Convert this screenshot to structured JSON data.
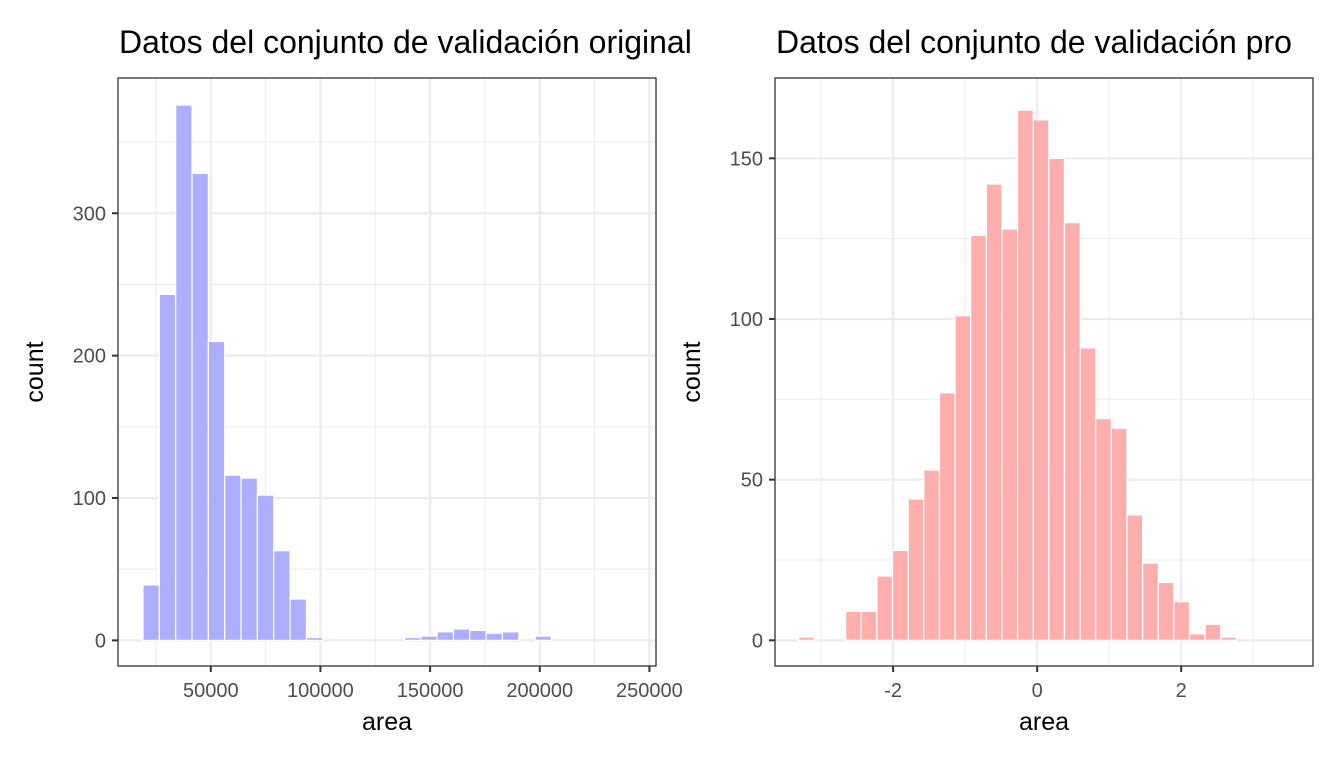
{
  "chart_data": [
    {
      "type": "bar",
      "subtype": "histogram",
      "title": "Datos del conjunto de validación original",
      "xlabel": "area",
      "ylabel": "count",
      "fill_color": "#aaaaff",
      "x_ticks": [
        50000,
        100000,
        150000,
        200000,
        250000
      ],
      "x_tick_labels": [
        "50000",
        "100000",
        "150000",
        "200000",
        "250000"
      ],
      "y_ticks": [
        0,
        100,
        200,
        300
      ],
      "y_tick_labels": [
        "0",
        "100",
        "200",
        "300"
      ],
      "xlim": [
        7700,
        253000
      ],
      "ylim": [
        -18,
        395
      ],
      "grid": true,
      "bin_start": 19100,
      "binwidth": 7450,
      "values": [
        39,
        243,
        376,
        328,
        210,
        116,
        114,
        102,
        63,
        29,
        2,
        0,
        0,
        0,
        0,
        0,
        2,
        3,
        6,
        8,
        7,
        5,
        6,
        0,
        3,
        0,
        0,
        0,
        0,
        0
      ]
    },
    {
      "type": "bar",
      "subtype": "histogram",
      "title": "Datos del conjunto de validación pro",
      "xlabel": "area",
      "ylabel": "count",
      "fill_color": "#ffaaaa",
      "x_ticks": [
        -2,
        0,
        2
      ],
      "x_tick_labels": [
        "-2",
        "0",
        "2"
      ],
      "y_ticks": [
        0,
        50,
        100,
        150
      ],
      "y_tick_labels": [
        "0",
        "50",
        "100",
        "150"
      ],
      "xlim": [
        -3.64,
        3.83
      ],
      "ylim": [
        -8,
        175
      ],
      "grid": true,
      "bin_start": -3.31,
      "binwidth": 0.217,
      "values": [
        1,
        0,
        0,
        9,
        9,
        20,
        28,
        44,
        53,
        77,
        101,
        126,
        142,
        128,
        165,
        162,
        150,
        130,
        91,
        69,
        66,
        39,
        24,
        18,
        12,
        2,
        5,
        1,
        0,
        0
      ]
    }
  ]
}
